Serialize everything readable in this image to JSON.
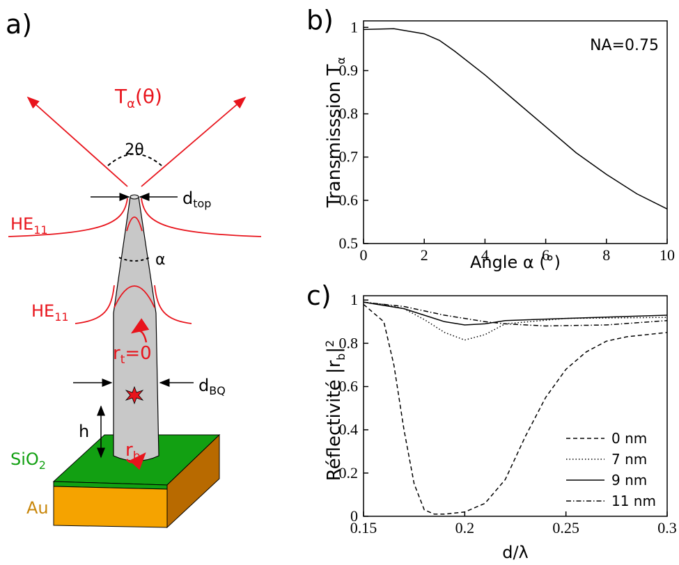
{
  "panel_labels": [
    "a)",
    "b)",
    "c)"
  ],
  "diagram": {
    "emission": [
      "T",
      "α",
      "(θ)"
    ],
    "angle_top": "2θ",
    "d_top": [
      "d",
      "top"
    ],
    "mode_top": [
      "HE",
      "11"
    ],
    "taper_angle": "α",
    "mode_bottom": [
      "HE",
      "11"
    ],
    "r_t": [
      "r",
      "t",
      "=0"
    ],
    "d_bq": [
      "d",
      "BQ"
    ],
    "h": "h",
    "r_b": [
      "r",
      "b"
    ],
    "sio2": [
      "SiO",
      "2"
    ],
    "au": "Au"
  },
  "chart_data": [
    {
      "type": "line",
      "x_label": "Angle α (°)",
      "y_label": [
        "Transmisssion T",
        "α"
      ],
      "annotation": "NA=0.75",
      "xlim": [
        0,
        10
      ],
      "ylim": [
        0.5,
        1.015
      ],
      "xticks": [
        0,
        2,
        4,
        6,
        8,
        10
      ],
      "yticks": [
        0.5,
        0.6,
        0.7,
        0.8,
        0.9,
        1
      ],
      "series": [
        {
          "color": "#000000",
          "line_style": "solid",
          "x": [
            0,
            1,
            2,
            2.5,
            3,
            4,
            5,
            6,
            7,
            8,
            9,
            10
          ],
          "values": [
            0.995,
            0.997,
            0.985,
            0.97,
            0.945,
            0.89,
            0.83,
            0.77,
            0.71,
            0.66,
            0.615,
            0.58
          ]
        }
      ]
    },
    {
      "type": "line",
      "x_label": "d/λ",
      "y_label": [
        "Réflectivité |r",
        "b",
        "|",
        "2"
      ],
      "legend": "lower right",
      "xlim": [
        0.15,
        0.3
      ],
      "ylim": [
        0,
        1.02
      ],
      "xticks": [
        0.15,
        0.2,
        0.25,
        0.3
      ],
      "yticks": [
        0,
        0.2,
        0.4,
        0.6,
        0.8,
        1
      ],
      "series": [
        {
          "name": "0 nm",
          "color": "#000000",
          "line_style": "dashed",
          "x": [
            0.15,
            0.16,
            0.165,
            0.17,
            0.175,
            0.18,
            0.185,
            0.19,
            0.2,
            0.21,
            0.22,
            0.23,
            0.24,
            0.25,
            0.26,
            0.27,
            0.28,
            0.3
          ],
          "values": [
            0.98,
            0.9,
            0.7,
            0.4,
            0.15,
            0.03,
            0.01,
            0.01,
            0.02,
            0.06,
            0.17,
            0.37,
            0.55,
            0.68,
            0.76,
            0.81,
            0.83,
            0.85
          ]
        },
        {
          "name": "7 nm",
          "color": "#000000",
          "line_style": "dotted",
          "x": [
            0.15,
            0.16,
            0.17,
            0.18,
            0.19,
            0.2,
            0.21,
            0.22,
            0.25,
            0.3
          ],
          "values": [
            0.99,
            0.98,
            0.96,
            0.91,
            0.85,
            0.815,
            0.84,
            0.89,
            0.915,
            0.92
          ]
        },
        {
          "name": "9 nm",
          "color": "#000000",
          "line_style": "solid",
          "x": [
            0.15,
            0.17,
            0.18,
            0.19,
            0.2,
            0.21,
            0.22,
            0.25,
            0.3
          ],
          "values": [
            0.99,
            0.96,
            0.93,
            0.9,
            0.885,
            0.89,
            0.905,
            0.915,
            0.93
          ]
        },
        {
          "name": "11 nm",
          "color": "#000000",
          "line_style": "dashdot",
          "x": [
            0.15,
            0.17,
            0.19,
            0.21,
            0.22,
            0.24,
            0.27,
            0.3
          ],
          "values": [
            0.99,
            0.97,
            0.93,
            0.9,
            0.89,
            0.88,
            0.885,
            0.905
          ]
        }
      ]
    }
  ]
}
